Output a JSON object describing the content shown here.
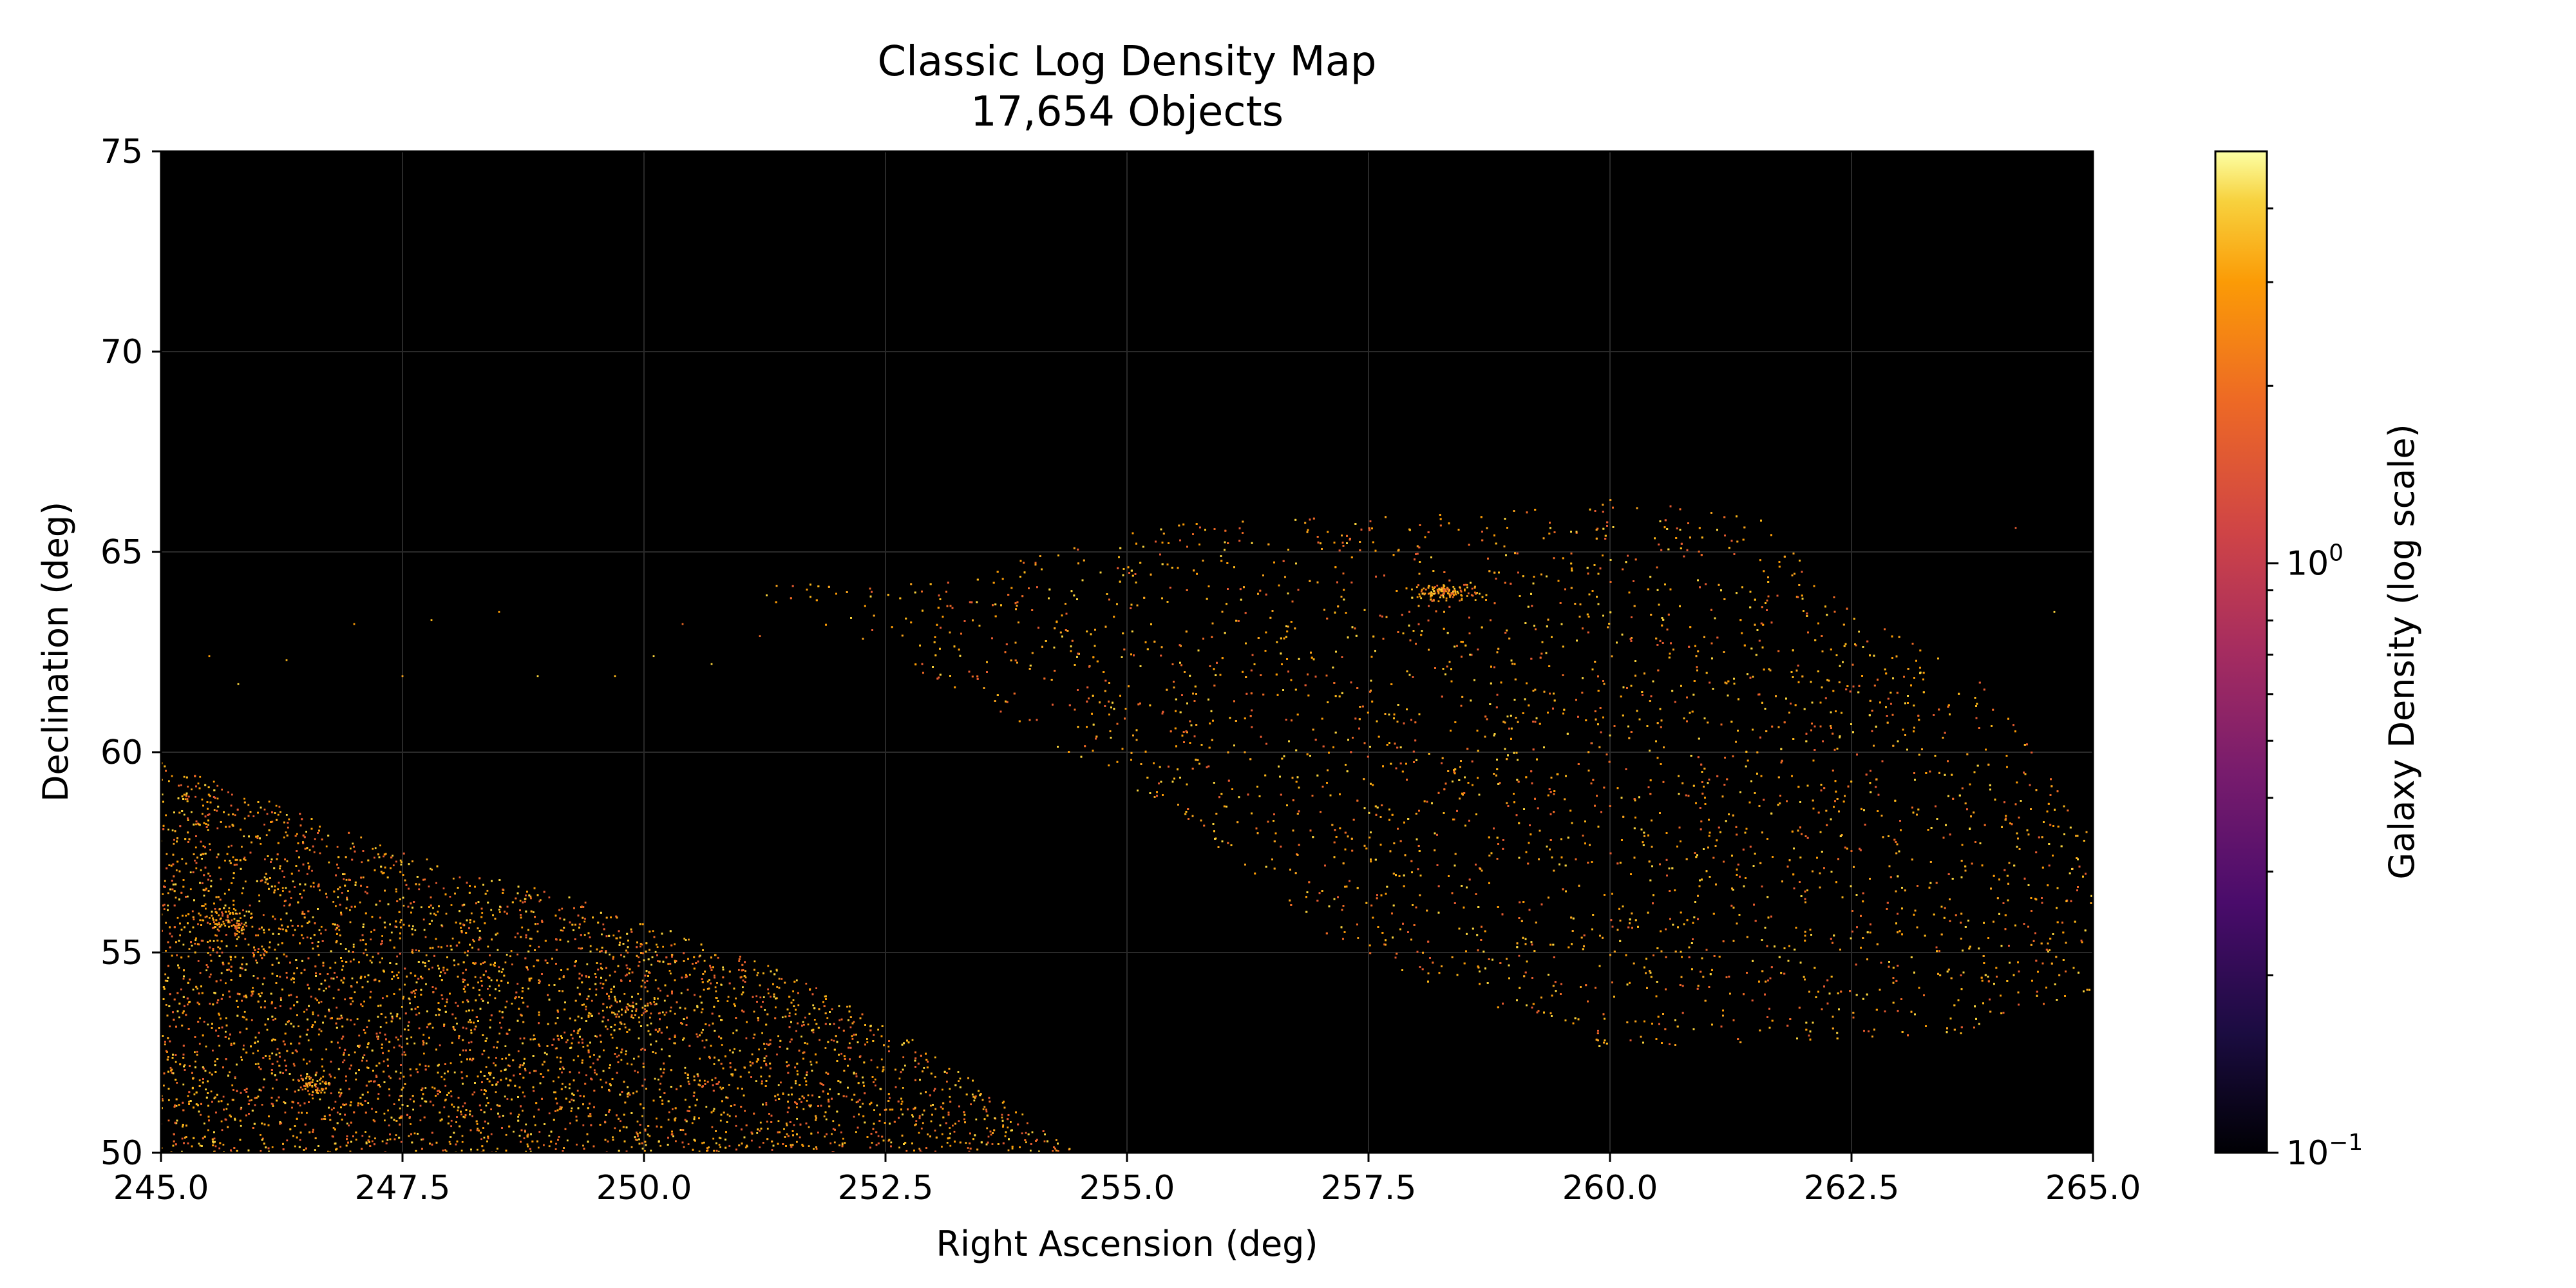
{
  "chart_data": {
    "type": "heatmap",
    "title": "Classic Log Density Map",
    "subtitle": "17,654 Objects",
    "xlabel": "Right Ascension (deg)",
    "ylabel": "Declination (deg)",
    "xlim": [
      245.0,
      265.0
    ],
    "ylim": [
      50,
      75
    ],
    "xticks": [
      245.0,
      247.5,
      250.0,
      252.5,
      255.0,
      257.5,
      260.0,
      262.5,
      265.0
    ],
    "xtick_labels": [
      "245.0",
      "247.5",
      "250.0",
      "252.5",
      "255.0",
      "257.5",
      "260.0",
      "262.5",
      "265.0"
    ],
    "yticks": [
      50,
      55,
      60,
      65,
      70,
      75
    ],
    "ytick_labels": [
      "50",
      "55",
      "60",
      "65",
      "70",
      "75"
    ],
    "grid": true,
    "background": "#000000",
    "colormap": "inferno",
    "colorbar": {
      "label": "Galaxy Density (log scale)",
      "scale": "log",
      "range": [
        0.1,
        5
      ],
      "major_ticks": [
        0.1,
        1
      ],
      "major_tick_labels": [
        {
          "base": "10",
          "exp": "−1"
        },
        {
          "base": "10",
          "exp": "0"
        }
      ],
      "minor_ticks": [
        0.2,
        0.3,
        0.4,
        0.5,
        0.6,
        0.7,
        0.8,
        0.9,
        2,
        3,
        4
      ]
    },
    "object_count": 17654,
    "regions": [
      {
        "name": "lower-left field",
        "polygon": [
          [
            245.0,
            59.8
          ],
          [
            247.5,
            57.5
          ],
          [
            249.5,
            56.2
          ],
          [
            251.5,
            54.5
          ],
          [
            252.8,
            52.8
          ],
          [
            254.5,
            50.0
          ],
          [
            245.0,
            50.0
          ]
        ],
        "density": 0.95
      },
      {
        "name": "central field",
        "polygon": [
          [
            251.0,
            64.1
          ],
          [
            253.5,
            64.5
          ],
          [
            255.0,
            65.6
          ],
          [
            257.0,
            65.9
          ],
          [
            258.5,
            66.0
          ],
          [
            260.0,
            66.3
          ],
          [
            261.5,
            66.0
          ],
          [
            262.5,
            63.6
          ],
          [
            264.0,
            61.5
          ],
          [
            265.0,
            57.8
          ],
          [
            265.0,
            53.8
          ],
          [
            263.8,
            53.0
          ],
          [
            262.0,
            52.8
          ],
          [
            260.0,
            52.5
          ],
          [
            258.5,
            53.8
          ],
          [
            257.0,
            55.5
          ],
          [
            255.5,
            58.5
          ],
          [
            254.0,
            60.5
          ],
          [
            252.5,
            62.5
          ]
        ],
        "density": 0.42
      }
    ],
    "clusters": [
      {
        "ra": 258.3,
        "dec": 64.0,
        "sigma_ra": 0.35,
        "sigma_dec": 0.22,
        "count": 140
      },
      {
        "ra": 245.7,
        "dec": 55.8,
        "sigma_ra": 0.3,
        "sigma_dec": 0.4,
        "count": 90
      },
      {
        "ra": 246.6,
        "dec": 51.7,
        "sigma_ra": 0.3,
        "sigma_dec": 0.3,
        "count": 60
      },
      {
        "ra": 250.0,
        "dec": 53.6,
        "sigma_ra": 0.4,
        "sigma_dec": 0.3,
        "count": 50
      }
    ],
    "isolated_points": [
      [
        245.5,
        62.4
      ],
      [
        245.8,
        61.7
      ],
      [
        246.3,
        62.3
      ],
      [
        247.0,
        63.2
      ],
      [
        247.5,
        61.9
      ],
      [
        247.8,
        63.3
      ],
      [
        248.5,
        63.5
      ],
      [
        248.9,
        61.9
      ],
      [
        249.7,
        61.9
      ],
      [
        250.4,
        63.2
      ],
      [
        250.7,
        62.2
      ],
      [
        250.1,
        62.4
      ],
      [
        251.2,
        62.9
      ],
      [
        264.2,
        65.6
      ],
      [
        264.6,
        63.5
      ]
    ]
  }
}
